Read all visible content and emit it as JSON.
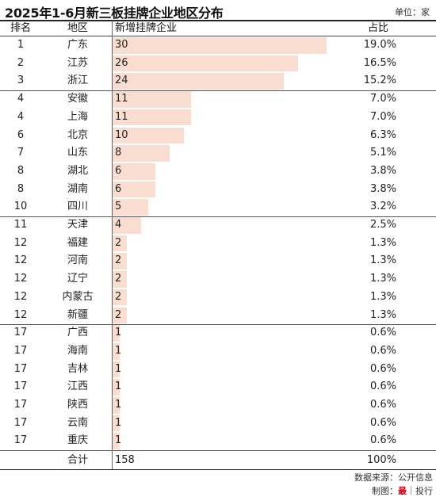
{
  "title": "2025年1-6月新三板挂牌企业地区分布",
  "unit": "单位：家",
  "headers": {
    "rank": "排名",
    "region": "地区",
    "count": "新增挂牌企业",
    "pct": "占比"
  },
  "chart_data": {
    "type": "bar",
    "title": "2025年1-6月新三板挂牌企业地区分布",
    "categories": [
      "广东",
      "江苏",
      "浙江",
      "安徽",
      "上海",
      "北京",
      "山东",
      "湖北",
      "湖南",
      "四川",
      "天津",
      "福建",
      "河南",
      "辽宁",
      "内蒙古",
      "新疆",
      "广西",
      "海南",
      "吉林",
      "江西",
      "陕西",
      "云南",
      "重庆"
    ],
    "ranks": [
      "1",
      "2",
      "3",
      "4",
      "4",
      "6",
      "7",
      "8",
      "8",
      "10",
      "11",
      "12",
      "12",
      "12",
      "12",
      "12",
      "17",
      "17",
      "17",
      "17",
      "17",
      "17",
      "17"
    ],
    "values": [
      30,
      26,
      24,
      11,
      11,
      10,
      8,
      6,
      6,
      5,
      4,
      2,
      2,
      2,
      2,
      2,
      1,
      1,
      1,
      1,
      1,
      1,
      1
    ],
    "percents": [
      "19.0%",
      "16.5%",
      "15.2%",
      "7.0%",
      "7.0%",
      "6.3%",
      "5.1%",
      "3.8%",
      "3.8%",
      "3.2%",
      "2.5%",
      "1.3%",
      "1.3%",
      "1.3%",
      "1.3%",
      "1.3%",
      "0.6%",
      "0.6%",
      "0.6%",
      "0.6%",
      "0.6%",
      "0.6%",
      "0.6%"
    ],
    "bar_color": "#f9ddd0"
  },
  "total": {
    "label": "合计",
    "value": "158",
    "pct": "100%"
  },
  "footer": {
    "source": "数据来源：公开信息",
    "maker_prefix": "制图：",
    "maker_brand": "最",
    "maker_sep": "｜",
    "maker_name": "投行"
  }
}
